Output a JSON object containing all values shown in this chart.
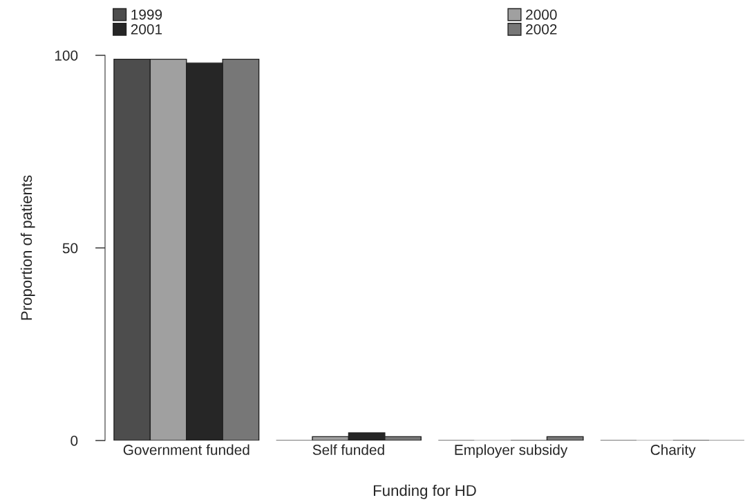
{
  "chart_data": {
    "type": "bar",
    "xlabel": "Funding for HD",
    "ylabel": "Proportion of patients",
    "categories": [
      "Government funded",
      "Self funded",
      "Employer subsidy",
      "Charity"
    ],
    "series": [
      {
        "name": "1999",
        "color": "#4d4d4d",
        "values": [
          99,
          0,
          0,
          0
        ]
      },
      {
        "name": "2000",
        "color": "#a0a0a0",
        "values": [
          99,
          1,
          0,
          0
        ]
      },
      {
        "name": "2001",
        "color": "#262626",
        "values": [
          98,
          2,
          0,
          0
        ]
      },
      {
        "name": "2002",
        "color": "#777777",
        "values": [
          99,
          1,
          1,
          0
        ]
      }
    ],
    "ylim": [
      0,
      100
    ],
    "yticks": [
      0,
      50,
      100
    ],
    "grid": false,
    "legend": "top"
  }
}
